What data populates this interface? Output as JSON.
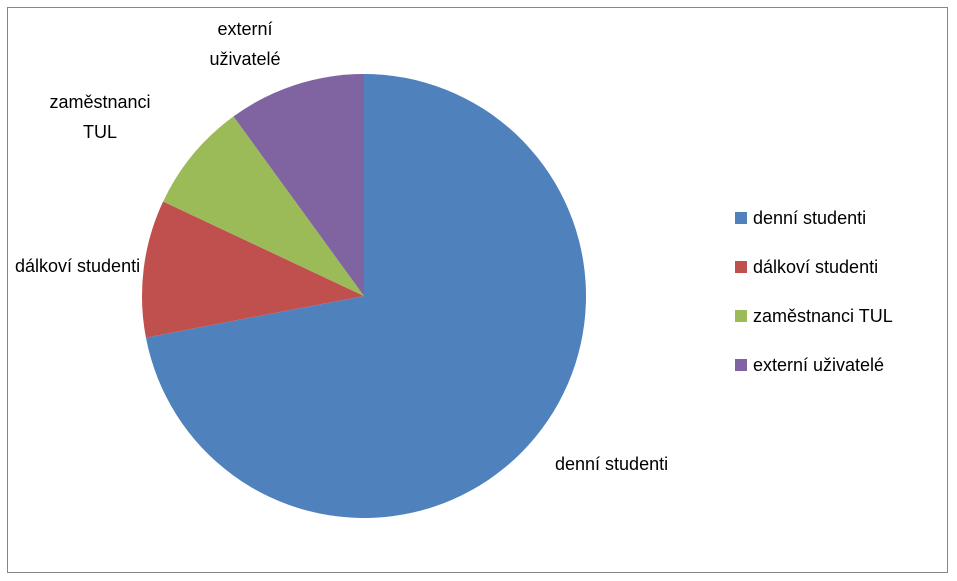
{
  "chart_data": {
    "type": "pie",
    "title": "",
    "categories": [
      "denní studenti",
      "dálkoví studenti",
      "zaměstnanci TUL",
      "externí uživatelé"
    ],
    "values": [
      72,
      10,
      8,
      10
    ],
    "colors": [
      "#4F81BD",
      "#C0504D",
      "#9BBB59",
      "#8064A2"
    ],
    "data_labels": [
      [
        "denní studenti"
      ],
      [
        "dálkoví studenti"
      ],
      [
        "zaměstnanci",
        "TUL"
      ],
      [
        "externí",
        "uživatelé"
      ]
    ],
    "legend": {
      "position": "right",
      "entries": [
        "denní studenti",
        "dálkoví studenti",
        "zaměstnanci TUL",
        "externí uživatelé"
      ]
    }
  }
}
